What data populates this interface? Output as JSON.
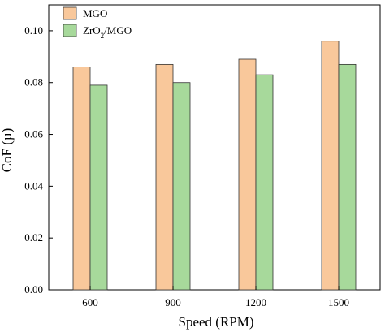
{
  "chart_data": {
    "type": "bar",
    "title": "",
    "xlabel": "Speed (RPM)",
    "ylabel": "CoF (µ)",
    "categories": [
      "600",
      "900",
      "1200",
      "1500"
    ],
    "series": [
      {
        "name": "MGO",
        "name_prefix": "MGO",
        "name_sub": "",
        "name_suffix": "",
        "color": "#f9c89b",
        "values": [
          0.086,
          0.087,
          0.089,
          0.096
        ]
      },
      {
        "name": "ZrO2/MGO",
        "name_prefix": "ZrO",
        "name_sub": "2",
        "name_suffix": "/MGO",
        "color": "#a7d99b",
        "values": [
          0.079,
          0.08,
          0.083,
          0.087
        ]
      }
    ],
    "ylim": [
      0,
      0.11
    ],
    "yticks": [
      "0.00",
      "0.02",
      "0.04",
      "0.06",
      "0.08",
      "0.10"
    ],
    "grid": false,
    "legend_position": "top-left"
  }
}
